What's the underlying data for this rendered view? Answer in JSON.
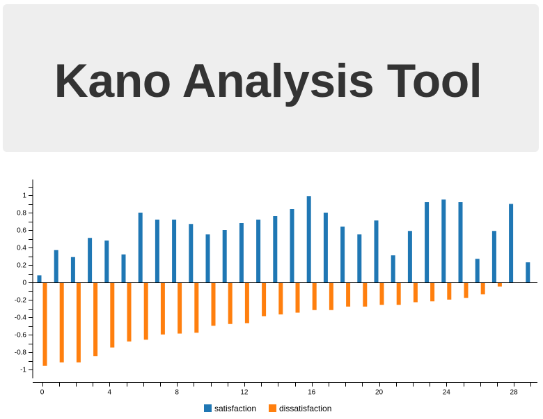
{
  "header": {
    "title": "Kano Analysis Tool"
  },
  "colors": {
    "satisfaction": "#1f77b4",
    "dissatisfaction": "#ff7f0e",
    "hero_bg": "#eeeeee",
    "title_text": "#333333"
  },
  "chart_data": {
    "type": "bar",
    "title": "",
    "xlabel": "",
    "ylabel": "",
    "x": [
      0,
      1,
      2,
      3,
      4,
      5,
      6,
      7,
      8,
      9,
      10,
      11,
      12,
      13,
      14,
      15,
      16,
      17,
      18,
      19,
      20,
      21,
      22,
      23,
      24,
      25,
      26,
      27,
      28,
      29
    ],
    "xlim": [
      -0.5,
      29.5
    ],
    "ylim": [
      -1.1,
      1.18
    ],
    "x_tick_labels": [
      "0",
      "4",
      "8",
      "12",
      "16",
      "20",
      "24",
      "28"
    ],
    "y_tick_labels": [
      "1",
      "0.8",
      "0.6",
      "0.4",
      "0.2",
      "0",
      "-0.2",
      "-0.4",
      "-0.6",
      "-0.8",
      "-1"
    ],
    "series": [
      {
        "name": "satisfaction",
        "values": [
          0.08,
          0.37,
          0.29,
          0.51,
          0.48,
          0.32,
          0.8,
          0.72,
          0.72,
          0.67,
          0.55,
          0.6,
          0.68,
          0.72,
          0.76,
          0.84,
          0.99,
          0.8,
          0.64,
          0.55,
          0.71,
          0.31,
          0.59,
          0.92,
          0.95,
          0.92,
          0.27,
          0.59,
          0.9,
          0.23
        ]
      },
      {
        "name": "dissatisfaction",
        "values": [
          -0.95,
          -0.91,
          -0.91,
          -0.84,
          -0.74,
          -0.67,
          -0.65,
          -0.59,
          -0.58,
          -0.57,
          -0.49,
          -0.47,
          -0.46,
          -0.38,
          -0.36,
          -0.34,
          -0.31,
          -0.31,
          -0.27,
          -0.27,
          -0.25,
          -0.25,
          -0.22,
          -0.21,
          -0.19,
          -0.17,
          -0.13,
          -0.04,
          0,
          0
        ]
      }
    ],
    "grid": false,
    "legend": "bottom-center"
  }
}
